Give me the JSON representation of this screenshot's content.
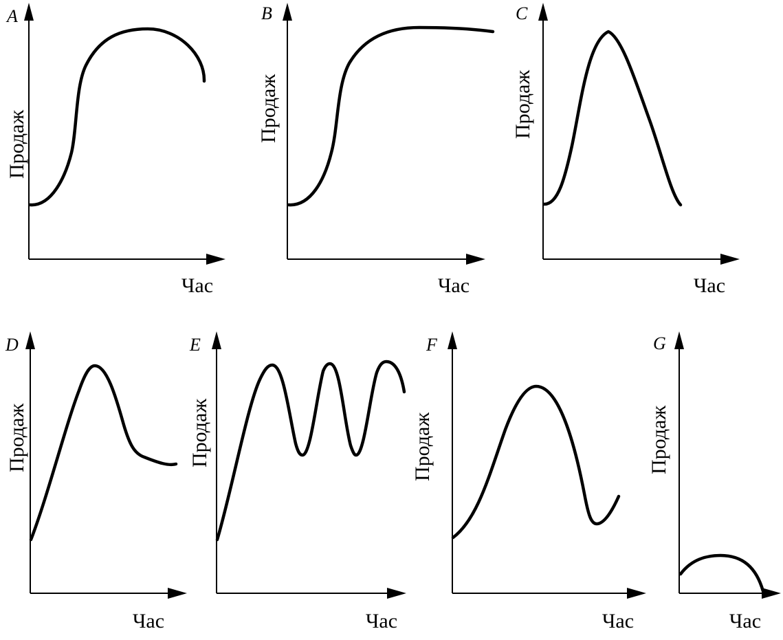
{
  "panels": [
    {
      "id": "A",
      "letter": "A",
      "ylabel": "Продаж",
      "xlabel": "Час",
      "shape": "growth-then-decline"
    },
    {
      "id": "B",
      "letter": "B",
      "ylabel": "Продаж",
      "xlabel": "Час",
      "shape": "growth-then-plateau"
    },
    {
      "id": "C",
      "letter": "C",
      "ylabel": "Продаж",
      "xlabel": "Час",
      "shape": "rapid-rise-and-fall"
    },
    {
      "id": "D",
      "letter": "D",
      "ylabel": "Продаж",
      "xlabel": "Час",
      "shape": "rise-fall-then-residual"
    },
    {
      "id": "E",
      "letter": "E",
      "ylabel": "Продаж",
      "xlabel": "Час",
      "shape": "repeated-cycles"
    },
    {
      "id": "F",
      "letter": "F",
      "ylabel": "Продаж",
      "xlabel": "Час",
      "shape": "rise-fall-then-recovery"
    },
    {
      "id": "G",
      "letter": "G",
      "ylabel": "Продаж",
      "xlabel": "Час",
      "shape": "low-small-arc"
    }
  ]
}
